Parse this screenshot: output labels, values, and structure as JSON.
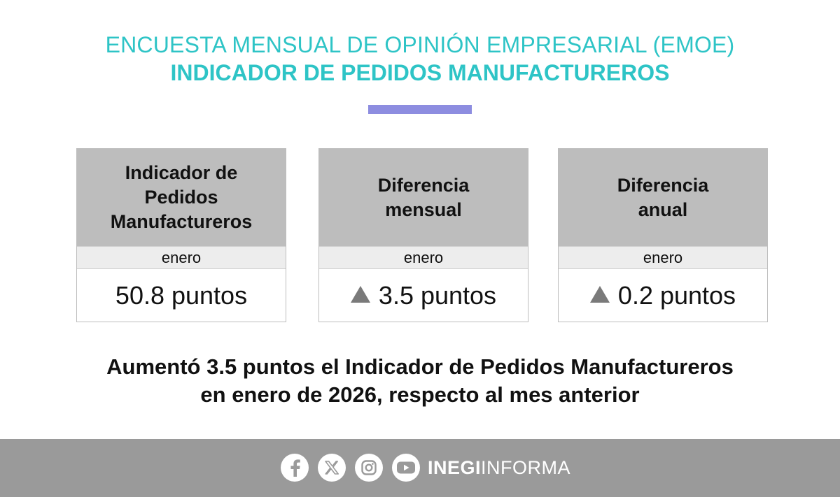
{
  "header": {
    "subtitle": "ENCUESTA MENSUAL DE OPINIÓN EMPRESARIAL (EMOE)",
    "title": "INDICADOR DE PEDIDOS MANUFACTUREROS"
  },
  "colors": {
    "accent_teal": "#2ec4c6",
    "bar_purple": "#8d8de0",
    "card_header_gray": "#bdbdbd",
    "footer_gray": "#9a9a9a",
    "arrow_gray": "#7a7a7a"
  },
  "cards": [
    {
      "heading_lines": [
        "Indicador de",
        "Pedidos",
        "Manufactureros"
      ],
      "period": "enero",
      "value": "50.8 puntos",
      "trend": "none"
    },
    {
      "heading_lines": [
        "Diferencia",
        "mensual"
      ],
      "period": "enero",
      "value": "3.5 puntos",
      "trend": "up-triangle-icon"
    },
    {
      "heading_lines": [
        "Diferencia",
        "anual"
      ],
      "period": "enero",
      "value": "0.2 puntos",
      "trend": "up-triangle-icon"
    }
  ],
  "headline": {
    "line1": "Aumentó 3.5 puntos el Indicador de Pedidos Manufactureros",
    "line2": "en enero de 2026, respecto al mes anterior"
  },
  "footer": {
    "icons": [
      "facebook-icon",
      "x-icon",
      "instagram-icon",
      "youtube-icon"
    ],
    "brand_bold": "INEGI",
    "brand_regular": "INFORMA"
  }
}
